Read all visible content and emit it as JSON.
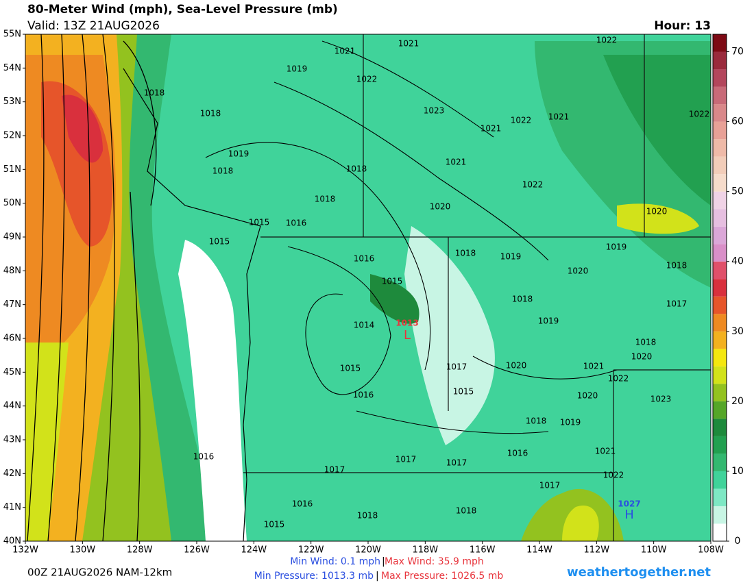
{
  "header": {
    "title": "80-Meter Wind (mph), Sea-Level Pressure (mb)",
    "valid": "Valid: 13Z 21AUG2026",
    "hour": "Hour: 13"
  },
  "map": {
    "lat_lim": [
      40,
      55
    ],
    "lon_lim": [
      -132,
      -108
    ],
    "lat_ticks": [
      {
        "value": 55,
        "label": "55N"
      },
      {
        "value": 54,
        "label": "54N"
      },
      {
        "value": 53,
        "label": "53N"
      },
      {
        "value": 52,
        "label": "52N"
      },
      {
        "value": 51,
        "label": "51N"
      },
      {
        "value": 50,
        "label": "50N"
      },
      {
        "value": 49,
        "label": "49N"
      },
      {
        "value": 48,
        "label": "48N"
      },
      {
        "value": 47,
        "label": "47N"
      },
      {
        "value": 46,
        "label": "46N"
      },
      {
        "value": 45,
        "label": "45N"
      },
      {
        "value": 44,
        "label": "44N"
      },
      {
        "value": 43,
        "label": "43N"
      },
      {
        "value": 42,
        "label": "42N"
      },
      {
        "value": 41,
        "label": "41N"
      },
      {
        "value": 40,
        "label": "40N"
      }
    ],
    "lon_ticks": [
      {
        "value": -132,
        "label": "132W"
      },
      {
        "value": -130,
        "label": "130W"
      },
      {
        "value": -128,
        "label": "128W"
      },
      {
        "value": -126,
        "label": "126W"
      },
      {
        "value": -124,
        "label": "124W"
      },
      {
        "value": -122,
        "label": "122W"
      },
      {
        "value": -120,
        "label": "120W"
      },
      {
        "value": -118,
        "label": "118W"
      },
      {
        "value": -116,
        "label": "116W"
      },
      {
        "value": -114,
        "label": "114W"
      },
      {
        "value": -112,
        "label": "112W"
      },
      {
        "value": -110,
        "label": "110W"
      },
      {
        "value": -108,
        "label": "108W"
      }
    ],
    "isobar_labels": [
      "1021",
      "1021",
      "1022",
      "1019",
      "1022",
      "1018",
      "1023",
      "1021",
      "1022",
      "1021",
      "1022",
      "1018",
      "1019",
      "1018",
      "1021",
      "1018",
      "1022",
      "1018",
      "1020",
      "1020",
      "1015",
      "1016",
      "1015",
      "1019",
      "1016",
      "1018",
      "1019",
      "1018",
      "1020",
      "1015",
      "1018",
      "1017",
      "1019",
      "1014",
      "1018",
      "1020",
      "1015",
      "1017",
      "1020",
      "1021",
      "1022",
      "1016",
      "1015",
      "1023",
      "1020",
      "1018",
      "1019",
      "1016",
      "1017",
      "1017",
      "1016",
      "1021",
      "1017",
      "1022",
      "1017",
      "1016",
      "1018",
      "1018",
      "1015"
    ],
    "low": {
      "value": "1013",
      "symbol": "L",
      "color": "#e8343c"
    },
    "high": {
      "value": "1027",
      "symbol": "H",
      "color": "#2b4fe0"
    }
  },
  "colorbar": {
    "lim": [
      0,
      72.5
    ],
    "ticks": [
      0,
      10,
      20,
      30,
      40,
      50,
      60,
      70
    ],
    "colors": [
      "#ffffff",
      "#c8f5e4",
      "#7ee8c4",
      "#40d39a",
      "#33b870",
      "#22a050",
      "#1e8a3c",
      "#55a628",
      "#93c21f",
      "#d2e21a",
      "#f4e70f",
      "#f3b120",
      "#ee8a22",
      "#e6552a",
      "#d9303d",
      "#e0506a",
      "#d98fc8",
      "#dba7d8",
      "#e6bfe0",
      "#f0d3e6",
      "#f6dccb",
      "#f2cdb9",
      "#efbaa8",
      "#e8a197",
      "#d9888a",
      "#c86a78",
      "#b3465c",
      "#9a2a3c",
      "#7d0a14"
    ]
  },
  "footer": {
    "run": "00Z 21AUG2026 NAM-12km",
    "min_wind": "Min Wind:  0.1 mph",
    "sep1": "|",
    "max_wind": "Max Wind:  35.9 mph",
    "min_pressure": "Min Pressure: 1013.3 mb",
    "sep2": "|",
    "max_pressure": "Max Pressure: 1026.5 mb",
    "site": "weathertogether.net"
  }
}
